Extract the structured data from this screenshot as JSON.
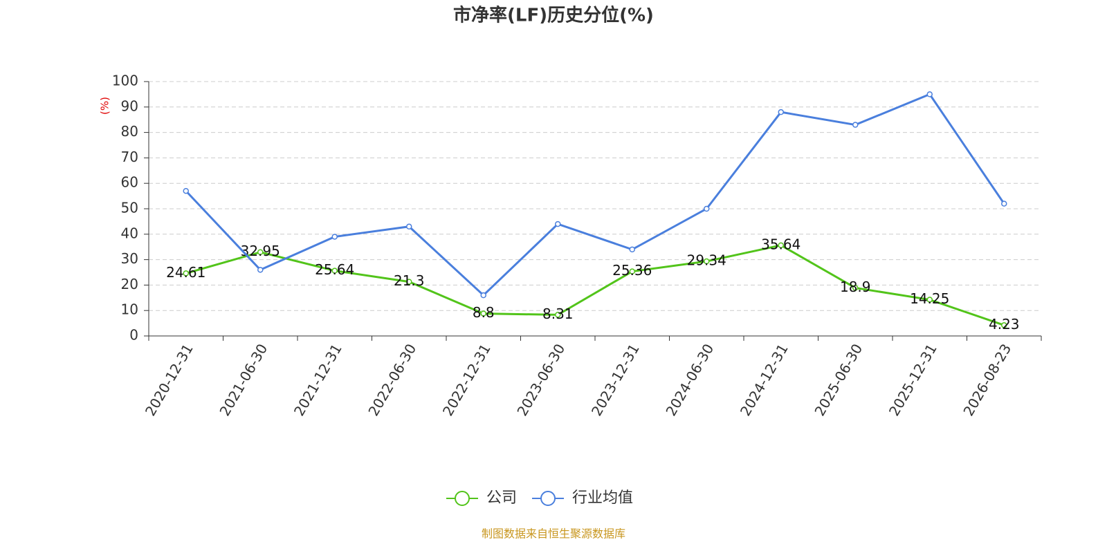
{
  "chart_data": {
    "type": "line",
    "title": "市净率(LF)历史分位(%)",
    "y_label": "(%)",
    "categories": [
      "2020-12-31",
      "2021-06-30",
      "2021-12-31",
      "2022-06-30",
      "2022-12-31",
      "2023-06-30",
      "2023-12-31",
      "2024-06-30",
      "2024-12-31",
      "2025-06-30",
      "2025-12-31",
      "2026-08-23"
    ],
    "series": [
      {
        "name": "公司",
        "color": "#52c41a",
        "values": [
          24.61,
          32.95,
          25.64,
          21.3,
          8.8,
          8.31,
          25.36,
          29.34,
          35.64,
          18.9,
          14.25,
          4.23
        ],
        "data_labels": true
      },
      {
        "name": "行业均值",
        "color": "#4a7fdd",
        "values": [
          57,
          26,
          39,
          43,
          16,
          44,
          34,
          50,
          88,
          83,
          95,
          52
        ],
        "data_labels": false
      }
    ],
    "ylim": [
      0,
      100
    ],
    "yticks": [
      0,
      10,
      20,
      30,
      40,
      50,
      60,
      70,
      80,
      90,
      100
    ],
    "grid": true,
    "legend": "bottom",
    "source": "制图数据来自恒生聚源数据库"
  }
}
